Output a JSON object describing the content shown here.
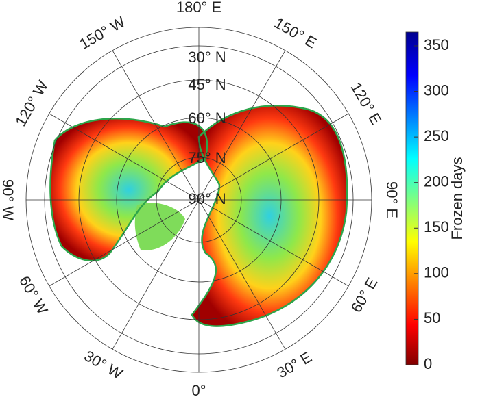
{
  "map": {
    "longitude_labels": [
      "180° E",
      "150° E",
      "120° E",
      "90° E",
      "60° E",
      "30° E",
      "0°",
      "30° W",
      "60° W",
      "90° W",
      "120° W",
      "150° W"
    ],
    "latitude_labels": [
      "30° N",
      "45° N",
      "60° N",
      "75° N",
      "90° N"
    ]
  },
  "colorbar": {
    "label": "Frozen days",
    "lim": [
      0,
      365
    ],
    "ticks": [
      0,
      50,
      100,
      150,
      200,
      250,
      300,
      350
    ]
  }
}
